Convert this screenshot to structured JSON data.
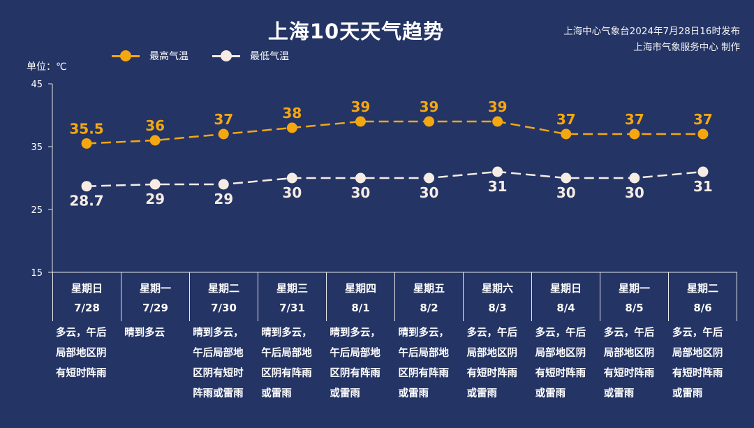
{
  "header": {
    "title": "上海10天天气趋势",
    "source_line1": "上海中心气象台2024年7月28日16时发布",
    "source_line2": "上海市气象服务中心 制作",
    "unit": "单位：℃"
  },
  "legend": [
    {
      "label": "最高气温",
      "color": "#f5a70f"
    },
    {
      "label": "最低气温",
      "color": "#f6ece4"
    }
  ],
  "chart_data": {
    "type": "line",
    "title": "上海10天天气趋势",
    "ylabel": "单位：℃",
    "ylim": [
      15,
      45
    ],
    "yticks": [
      15,
      25,
      35,
      45
    ],
    "grid": false,
    "legend_position": "top-left",
    "categories": [
      "7/28",
      "7/29",
      "7/30",
      "7/31",
      "8/1",
      "8/2",
      "8/3",
      "8/4",
      "8/5",
      "8/6"
    ],
    "weekdays": [
      "星期日",
      "星期一",
      "星期二",
      "星期三",
      "星期四",
      "星期五",
      "星期六",
      "星期日",
      "星期一",
      "星期二"
    ],
    "series": [
      {
        "name": "最高气温",
        "color": "#f5a70f",
        "values": [
          35.5,
          36,
          37,
          38,
          39,
          39,
          39,
          37,
          37,
          37
        ],
        "labels": [
          "35.5",
          "36",
          "37",
          "38",
          "39",
          "39",
          "39",
          "37",
          "37",
          "37"
        ]
      },
      {
        "name": "最低气温",
        "color": "#f6ece4",
        "values": [
          28.7,
          29,
          29,
          30,
          30,
          30,
          31,
          30,
          30,
          31
        ],
        "labels": [
          "28.7",
          "29",
          "29",
          "30",
          "30",
          "30",
          "31",
          "30",
          "30",
          "31"
        ]
      }
    ]
  },
  "days": [
    {
      "weekday": "星期日",
      "date": "7/28",
      "weather": "多云，午后\n局部地区阴\n有短时阵雨"
    },
    {
      "weekday": "星期一",
      "date": "7/29",
      "weather": "晴到多云"
    },
    {
      "weekday": "星期二",
      "date": "7/30",
      "weather": "晴到多云，\n午后局部地\n区阴有短时\n阵雨或雷雨"
    },
    {
      "weekday": "星期三",
      "date": "7/31",
      "weather": "晴到多云，\n午后局部地\n区阴有阵雨\n或雷雨"
    },
    {
      "weekday": "星期四",
      "date": "8/1",
      "weather": "晴到多云，\n午后局部地\n区阴有阵雨\n或雷雨"
    },
    {
      "weekday": "星期五",
      "date": "8/2",
      "weather": "晴到多云，\n午后局部地\n区阴有阵雨\n或雷雨"
    },
    {
      "weekday": "星期六",
      "date": "8/3",
      "weather": "多云，午后\n局部地区阴\n有短时阵雨\n或雷雨"
    },
    {
      "weekday": "星期日",
      "date": "8/4",
      "weather": "多云，午后\n局部地区阴\n有短时阵雨\n或雷雨"
    },
    {
      "weekday": "星期一",
      "date": "8/5",
      "weather": "多云，午后\n局部地区阴\n有短时阵雨\n或雷雨"
    },
    {
      "weekday": "星期二",
      "date": "8/6",
      "weather": "多云，午后\n局部地区阴\n有短时阵雨\n或雷雨"
    }
  ]
}
